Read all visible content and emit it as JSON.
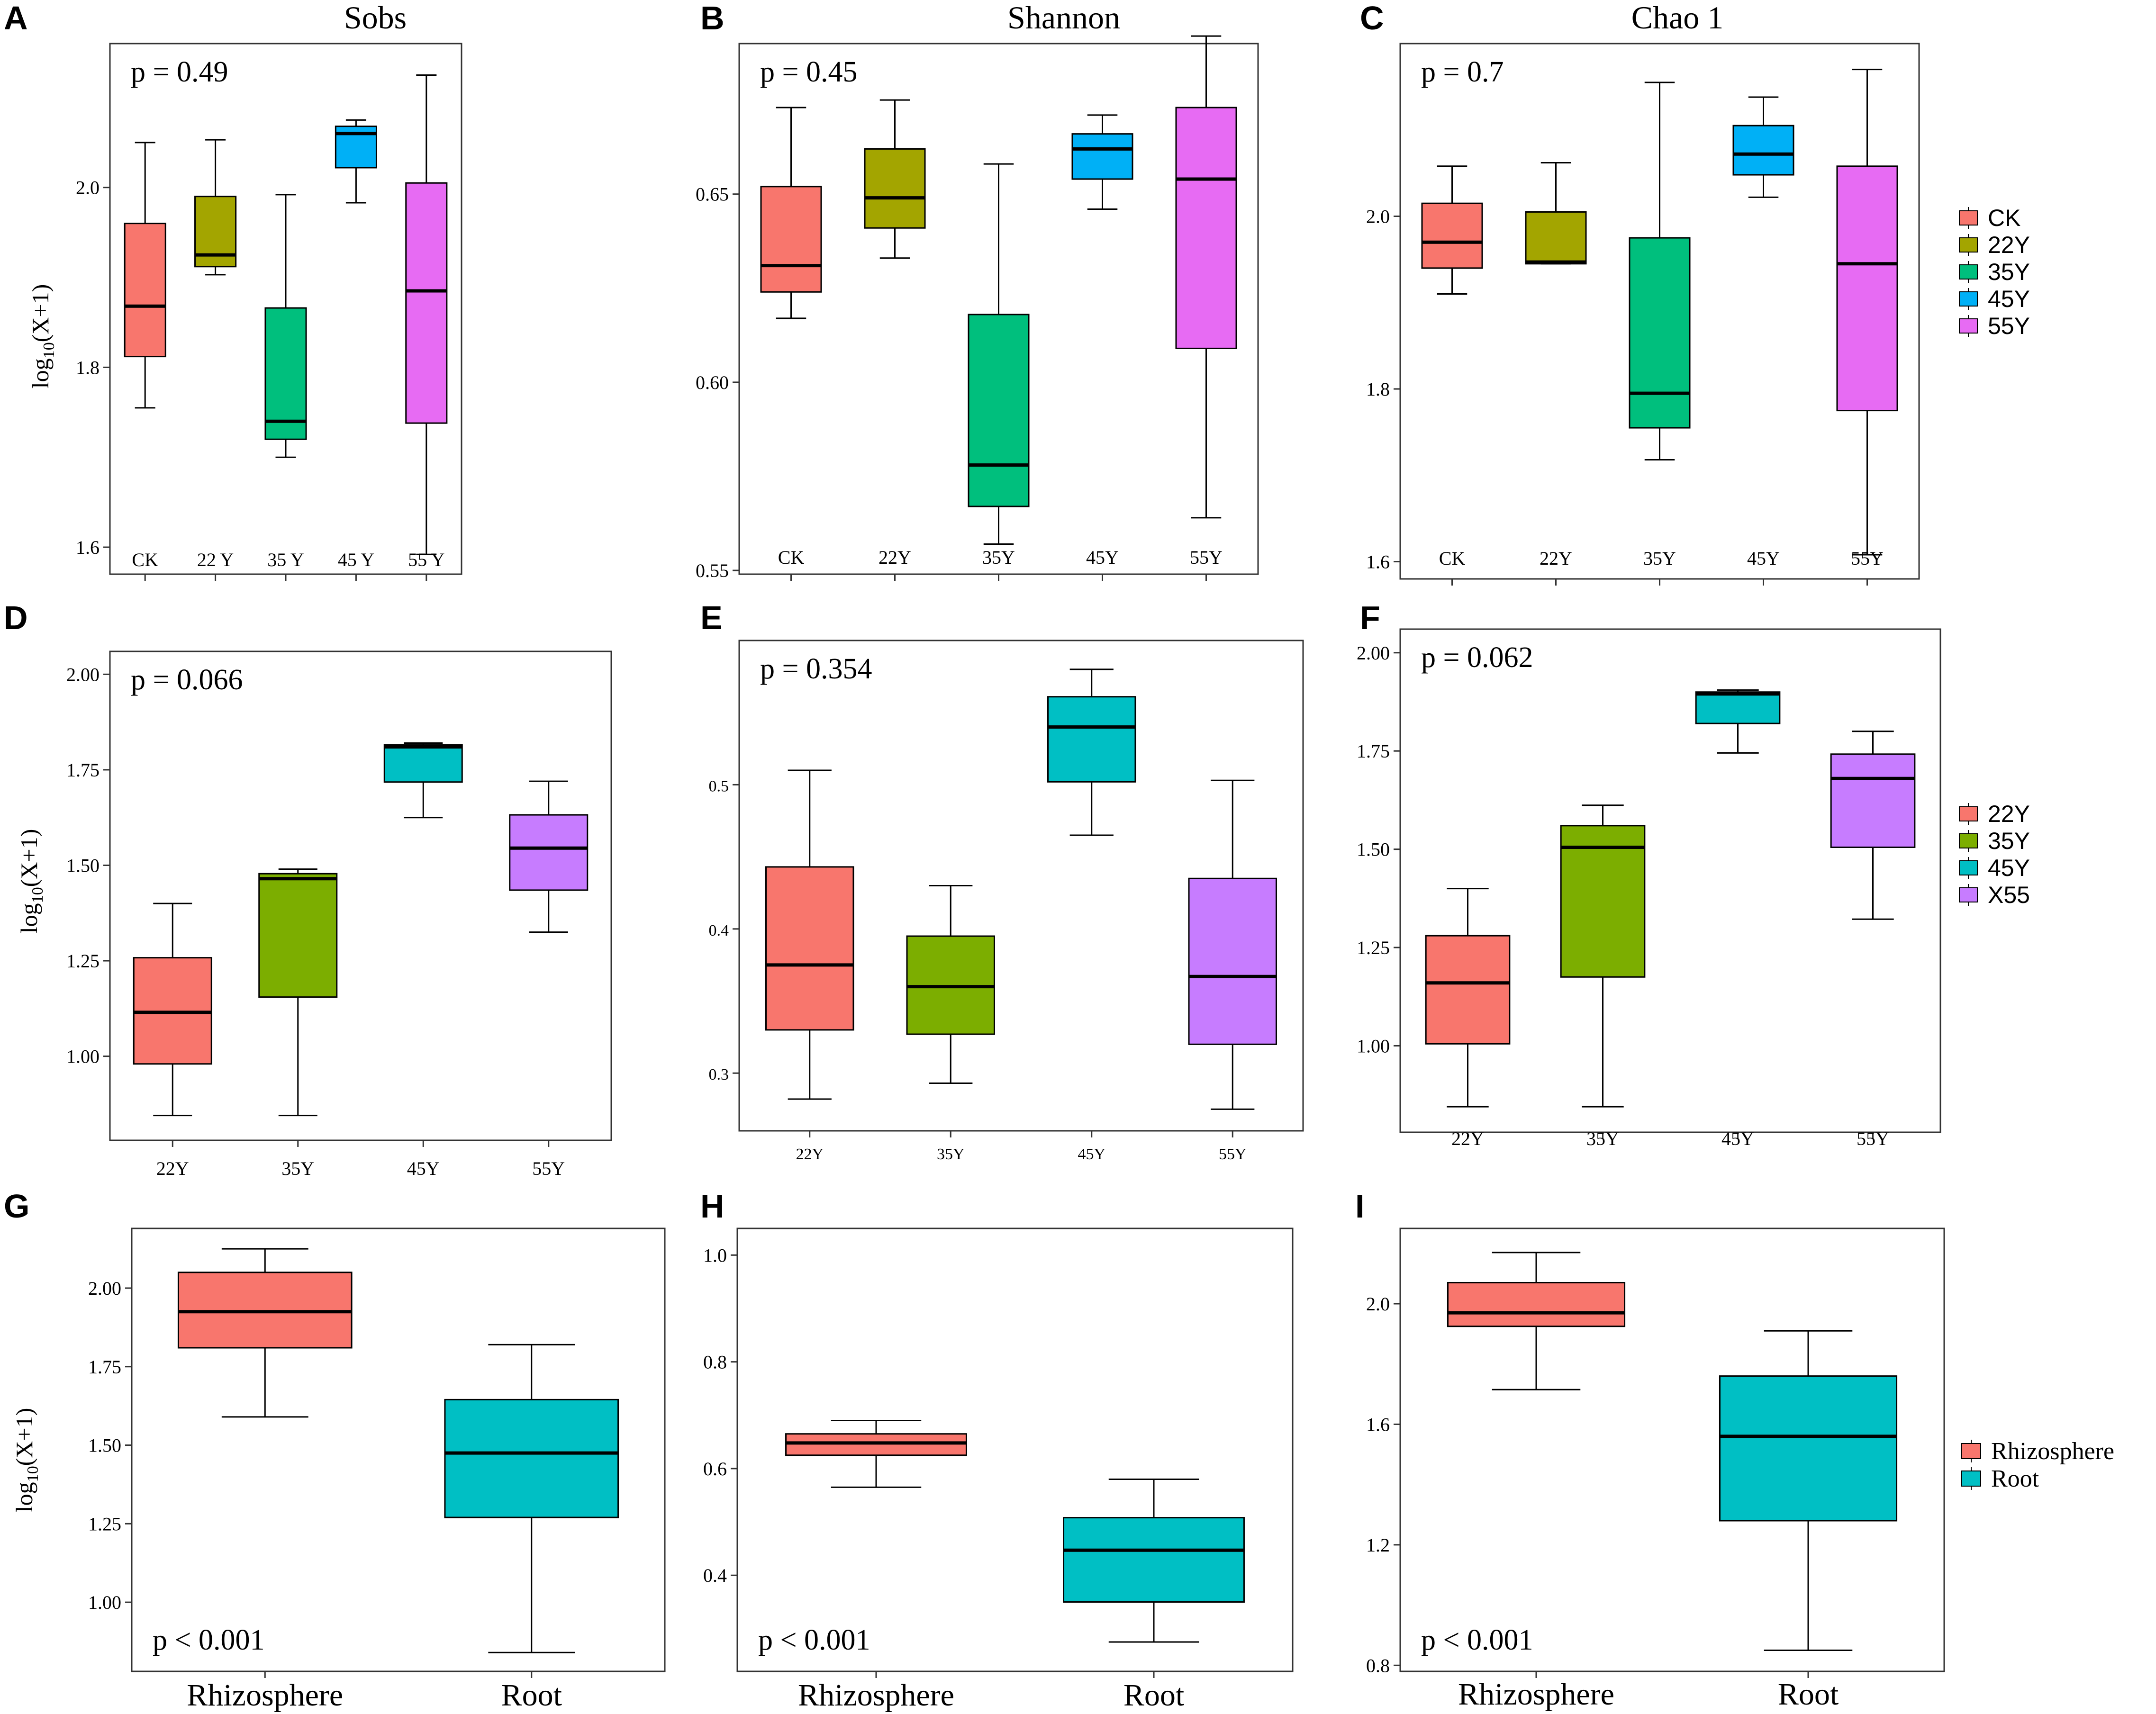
{
  "colors": {
    "CK": "#F8766D",
    "Y22": "#A3A500",
    "Y35": "#00BF7D",
    "Y45": "#00B0F6",
    "Y55": "#E76BF3",
    "g_red": "#F8766D",
    "g_olive": "#7CAE00",
    "g_teal": "#00BFC4",
    "g_purple": "#C77CFF"
  },
  "legends": {
    "row1": [
      "CK",
      "22Y",
      "35Y",
      "45Y",
      "55Y"
    ],
    "row2": [
      "22Y",
      "35Y",
      "45Y",
      "X55"
    ],
    "row3": [
      "Rhizosphere",
      "Root"
    ]
  },
  "chart_data": [
    {
      "panel": "A",
      "title": "Sobs",
      "type": "box",
      "p_value": "p = 0.49",
      "ylabel": "log10(X+1)",
      "ylim": [
        1.57,
        2.16
      ],
      "yticks": [
        "1.6",
        "1.8",
        "2.0"
      ],
      "ytick_values": [
        1.6,
        1.8,
        2.0
      ],
      "categories": [
        "CK",
        "22 Y",
        "35 Y",
        "45 Y",
        "55 Y"
      ],
      "boxes": [
        {
          "min": 1.755,
          "q1": 1.812,
          "median": 1.868,
          "q3": 1.96,
          "max": 2.05
        },
        {
          "min": 1.903,
          "q1": 1.912,
          "median": 1.925,
          "q3": 1.99,
          "max": 2.053
        },
        {
          "min": 1.7,
          "q1": 1.72,
          "median": 1.74,
          "q3": 1.866,
          "max": 1.992
        },
        {
          "min": 1.983,
          "q1": 2.022,
          "median": 2.06,
          "q3": 2.068,
          "max": 2.075
        },
        {
          "min": 1.592,
          "q1": 1.738,
          "median": 1.885,
          "q3": 2.005,
          "max": 2.125
        }
      ]
    },
    {
      "panel": "B",
      "title": "Shannon",
      "type": "box",
      "p_value": "p = 0.45",
      "ylabel": "",
      "ylim": [
        0.549,
        0.69
      ],
      "yticks": [
        "0.55",
        "0.60",
        "0.65"
      ],
      "ytick_values": [
        0.55,
        0.6,
        0.65
      ],
      "categories": [
        "CK",
        "22Y",
        "35Y",
        "45Y",
        "55Y"
      ],
      "boxes": [
        {
          "min": 0.617,
          "q1": 0.624,
          "median": 0.631,
          "q3": 0.652,
          "max": 0.673
        },
        {
          "min": 0.633,
          "q1": 0.641,
          "median": 0.649,
          "q3": 0.662,
          "max": 0.675
        },
        {
          "min": 0.557,
          "q1": 0.567,
          "median": 0.578,
          "q3": 0.618,
          "max": 0.658
        },
        {
          "min": 0.646,
          "q1": 0.654,
          "median": 0.662,
          "q3": 0.666,
          "max": 0.671
        },
        {
          "min": 0.564,
          "q1": 0.609,
          "median": 0.654,
          "q3": 0.673,
          "max": 0.692
        }
      ]
    },
    {
      "panel": "C",
      "title": "Chao 1",
      "type": "box",
      "p_value": "p = 0.7",
      "ylabel": "",
      "ylim": [
        1.58,
        2.2
      ],
      "yticks": [
        "1.6",
        "1.8",
        "2.0"
      ],
      "ytick_values": [
        1.6,
        1.8,
        2.0
      ],
      "categories": [
        "CK",
        "22Y",
        "35Y",
        "45Y",
        "55Y"
      ],
      "boxes": [
        {
          "min": 1.91,
          "q1": 1.94,
          "median": 1.97,
          "q3": 2.015,
          "max": 2.058
        },
        {
          "min": 1.945,
          "q1": 1.945,
          "median": 1.947,
          "q3": 2.005,
          "max": 2.062
        },
        {
          "min": 1.718,
          "q1": 1.755,
          "median": 1.795,
          "q3": 1.975,
          "max": 2.155
        },
        {
          "min": 2.022,
          "q1": 2.048,
          "median": 2.072,
          "q3": 2.105,
          "max": 2.138
        },
        {
          "min": 1.608,
          "q1": 1.775,
          "median": 1.945,
          "q3": 2.058,
          "max": 2.17
        }
      ]
    },
    {
      "panel": "D",
      "title": "",
      "type": "box",
      "p_value": "p = 0.066",
      "ylabel": "log10(X+1)",
      "ylim": [
        0.78,
        2.06
      ],
      "yticks": [
        "1.00",
        "1.25",
        "1.50",
        "1.75",
        "2.00"
      ],
      "ytick_values": [
        1.0,
        1.25,
        1.5,
        1.75,
        2.0
      ],
      "categories": [
        "22Y",
        "35Y",
        "45Y",
        "55Y"
      ],
      "boxes": [
        {
          "min": 0.845,
          "q1": 0.98,
          "median": 1.115,
          "q3": 1.258,
          "max": 1.4
        },
        {
          "min": 0.845,
          "q1": 1.155,
          "median": 1.465,
          "q3": 1.478,
          "max": 1.49
        },
        {
          "min": 1.625,
          "q1": 1.718,
          "median": 1.81,
          "q3": 1.815,
          "max": 1.82
        },
        {
          "min": 1.325,
          "q1": 1.435,
          "median": 1.545,
          "q3": 1.632,
          "max": 1.72
        }
      ]
    },
    {
      "panel": "E",
      "title": "",
      "type": "box",
      "p_value": "p = 0.354",
      "ylabel": "",
      "ylim": [
        0.26,
        0.6
      ],
      "yticks": [
        "0.3",
        "0.4",
        "0.5"
      ],
      "ytick_values": [
        0.3,
        0.4,
        0.5
      ],
      "categories": [
        "22Y",
        "35Y",
        "45Y",
        "55Y"
      ],
      "boxes": [
        {
          "min": 0.282,
          "q1": 0.33,
          "median": 0.375,
          "q3": 0.443,
          "max": 0.51
        },
        {
          "min": 0.293,
          "q1": 0.327,
          "median": 0.36,
          "q3": 0.395,
          "max": 0.43
        },
        {
          "min": 0.465,
          "q1": 0.502,
          "median": 0.54,
          "q3": 0.561,
          "max": 0.58
        },
        {
          "min": 0.275,
          "q1": 0.32,
          "median": 0.367,
          "q3": 0.435,
          "max": 0.503
        }
      ]
    },
    {
      "panel": "F",
      "title": "",
      "type": "box",
      "p_value": "p = 0.062",
      "ylabel": "",
      "ylim": [
        0.78,
        2.06
      ],
      "yticks": [
        "1.00",
        "1.25",
        "1.50",
        "1.75",
        "2.00"
      ],
      "ytick_values": [
        1.0,
        1.25,
        1.5,
        1.75,
        2.0
      ],
      "categories": [
        "22Y",
        "35Y",
        "45Y",
        "55Y"
      ],
      "boxes": [
        {
          "min": 0.845,
          "q1": 1.005,
          "median": 1.16,
          "q3": 1.28,
          "max": 1.4
        },
        {
          "min": 0.845,
          "q1": 1.175,
          "median": 1.505,
          "q3": 1.56,
          "max": 1.612
        },
        {
          "min": 1.745,
          "q1": 1.82,
          "median": 1.895,
          "q3": 1.9,
          "max": 1.905
        },
        {
          "min": 1.322,
          "q1": 1.505,
          "median": 1.68,
          "q3": 1.742,
          "max": 1.8
        }
      ]
    },
    {
      "panel": "G",
      "title": "",
      "type": "box",
      "p_value": "p < 0.001",
      "ylabel": "log10(X+1)",
      "ylim": [
        0.78,
        2.19
      ],
      "yticks": [
        "1.00",
        "1.25",
        "1.50",
        "1.75",
        "2.00"
      ],
      "ytick_values": [
        1.0,
        1.25,
        1.5,
        1.75,
        2.0
      ],
      "categories": [
        "Rhizosphere",
        "Root"
      ],
      "boxes": [
        {
          "min": 1.59,
          "q1": 1.81,
          "median": 1.925,
          "q3": 2.05,
          "max": 2.125
        },
        {
          "min": 0.84,
          "q1": 1.27,
          "median": 1.475,
          "q3": 1.645,
          "max": 1.82
        }
      ]
    },
    {
      "panel": "H",
      "title": "",
      "type": "box",
      "p_value": "p < 0.001",
      "ylabel": "",
      "ylim": [
        0.22,
        1.05
      ],
      "yticks": [
        "0.4",
        "0.6",
        "0.8",
        "1.0"
      ],
      "ytick_values": [
        0.4,
        0.6,
        0.8,
        1.0
      ],
      "categories": [
        "Rhizosphere",
        "Root"
      ],
      "boxes": [
        {
          "min": 0.565,
          "q1": 0.625,
          "median": 0.648,
          "q3": 0.665,
          "max": 0.69
        },
        {
          "min": 0.275,
          "q1": 0.35,
          "median": 0.447,
          "q3": 0.508,
          "max": 0.58
        }
      ]
    },
    {
      "panel": "I",
      "title": "",
      "type": "box",
      "p_value": "p < 0.001",
      "ylabel": "",
      "ylim": [
        0.78,
        2.25
      ],
      "yticks": [
        "0.8",
        "1.2",
        "1.6",
        "2.0"
      ],
      "ytick_values": [
        0.8,
        1.2,
        1.6,
        2.0
      ],
      "categories": [
        "Rhizosphere",
        "Root"
      ],
      "boxes": [
        {
          "min": 1.715,
          "q1": 1.925,
          "median": 1.97,
          "q3": 2.07,
          "max": 2.17
        },
        {
          "min": 0.85,
          "q1": 1.28,
          "median": 1.56,
          "q3": 1.76,
          "max": 1.91
        }
      ]
    }
  ]
}
